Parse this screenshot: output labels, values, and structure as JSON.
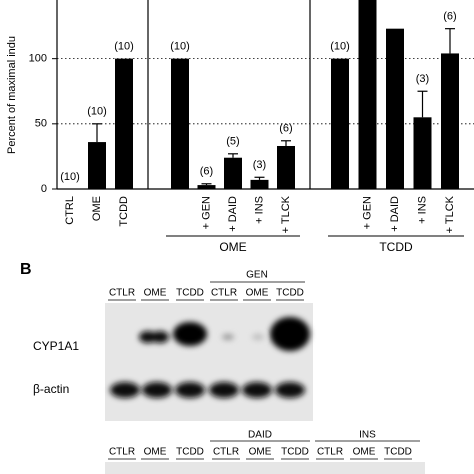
{
  "chart_data": {
    "type": "bar",
    "y_label": "Percent of maximal indu",
    "ylim": [
      0,
      145
    ],
    "yticks": [
      0,
      50,
      100
    ],
    "grid": true,
    "color": "#000000",
    "panels": [
      {
        "categories": [
          "CTRL",
          "OME",
          "TCDD"
        ],
        "values": [
          0,
          36,
          100
        ],
        "errors": [
          null,
          14,
          null
        ],
        "n_labels": [
          "(10)",
          "(10)",
          "(10)"
        ]
      },
      {
        "group": "OME",
        "categories": [
          null,
          "+ GEN",
          "+ DAID",
          "+ INS",
          "+ TLCK"
        ],
        "values": [
          100,
          3,
          24,
          7,
          33
        ],
        "errors": [
          null,
          1,
          3,
          2,
          4
        ],
        "n_labels": [
          "(10)",
          "(6)",
          "(5)",
          "(3)",
          "(6)"
        ]
      },
      {
        "group": "TCDD",
        "categories": [
          null,
          "+ GEN",
          "+ DAID",
          "+ INS",
          "+ TLCK"
        ],
        "values": [
          100,
          150,
          123,
          55,
          104
        ],
        "errors": [
          null,
          null,
          null,
          20,
          19
        ],
        "n_labels": [
          "(10)",
          null,
          null,
          "(3)",
          "(6)"
        ]
      }
    ]
  },
  "blots": {
    "label": "B",
    "blot1": {
      "lanes": [
        "CTLR",
        "OME",
        "TCDD",
        "CTLR",
        "OME",
        "TCDD"
      ],
      "group": "GEN",
      "rows": [
        "CYP1A1",
        "β-actin"
      ]
    },
    "blot2": {
      "lanes": [
        "CTLR",
        "OME",
        "TCDD",
        "CTLR",
        "OME",
        "TCDD",
        "CTLR",
        "OME",
        "TCDD"
      ],
      "groups": [
        "DAID",
        "INS"
      ]
    }
  }
}
